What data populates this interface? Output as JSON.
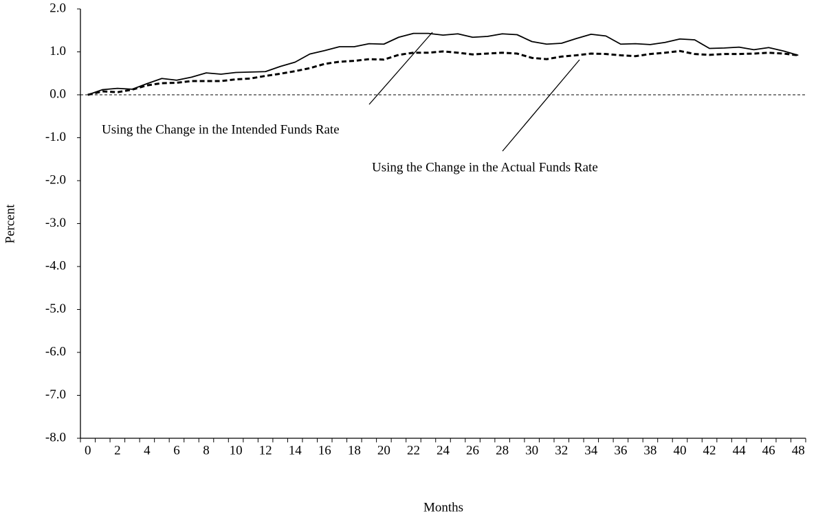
{
  "chart_data": {
    "type": "line",
    "y_label": "Percent",
    "x_label": "Months",
    "categories": [
      "0",
      null,
      "2",
      null,
      "4",
      null,
      "6",
      null,
      "8",
      null,
      "10",
      null,
      "12",
      null,
      "14",
      null,
      "16",
      null,
      "18",
      null,
      "20",
      null,
      "22",
      null,
      "24",
      null,
      "26",
      null,
      "28",
      null,
      "30",
      null,
      "32",
      null,
      "34",
      null,
      "36",
      null,
      "38",
      null,
      "40",
      null,
      "42",
      null,
      "44",
      null,
      "46",
      null,
      "48"
    ],
    "ylim": [
      -8,
      2
    ],
    "yticks": [
      {
        "value": -8,
        "label": "-8.0"
      },
      {
        "value": -7,
        "label": "-7.0"
      },
      {
        "value": -6,
        "label": "-6.0"
      },
      {
        "value": -5,
        "label": "-5.0"
      },
      {
        "value": -4,
        "label": "-4.0"
      },
      {
        "value": -3,
        "label": "-3.0"
      },
      {
        "value": -2,
        "label": "-2.0"
      },
      {
        "value": -1,
        "label": "-1.0"
      },
      {
        "value": 0,
        "label": "0.0"
      },
      {
        "value": 1,
        "label": "1.0"
      },
      {
        "value": 2,
        "label": "2.0"
      }
    ],
    "zero_line": true,
    "series": [
      {
        "name": "Using the Change in the Intended Funds Rate",
        "color": "#000000",
        "style": "solid",
        "values": [
          0,
          0.12,
          0.15,
          0.13,
          0.26,
          0.38,
          0.34,
          0.41,
          0.51,
          0.48,
          0.52,
          0.53,
          0.54,
          0.66,
          0.76,
          0.95,
          1.03,
          1.12,
          1.12,
          1.19,
          1.18,
          1.34,
          1.43,
          1.43,
          1.39,
          1.42,
          1.34,
          1.36,
          1.42,
          1.4,
          1.24,
          1.18,
          1.2,
          1.31,
          1.41,
          1.37,
          1.18,
          1.19,
          1.17,
          1.22,
          1.3,
          1.28,
          1.08,
          1.09,
          1.11,
          1.05,
          1.1,
          1.02,
          0.92
        ]
      },
      {
        "name": "Using the Change in the Actual Funds Rate",
        "color": "#000000",
        "style": "dashed",
        "values": [
          0,
          0.08,
          0.06,
          0.12,
          0.22,
          0.27,
          0.28,
          0.32,
          0.32,
          0.32,
          0.36,
          0.38,
          0.44,
          0.49,
          0.55,
          0.62,
          0.72,
          0.77,
          0.79,
          0.83,
          0.82,
          0.93,
          0.98,
          0.98,
          1.01,
          0.98,
          0.94,
          0.96,
          0.98,
          0.96,
          0.86,
          0.83,
          0.89,
          0.92,
          0.96,
          0.95,
          0.92,
          0.9,
          0.95,
          0.98,
          1.02,
          0.95,
          0.93,
          0.95,
          0.95,
          0.96,
          0.98,
          0.96,
          0.92
        ]
      }
    ]
  }
}
